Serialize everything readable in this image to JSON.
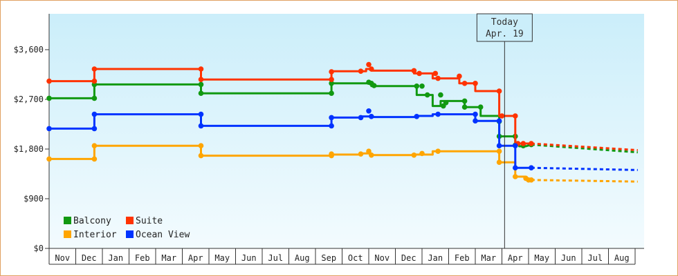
{
  "chart_data": {
    "type": "line",
    "title": "",
    "xlabel": "",
    "ylabel": "",
    "ylim": [
      0,
      4250
    ],
    "y_ticks": [
      0,
      900,
      1800,
      2700,
      3600
    ],
    "y_tick_labels": [
      "$0",
      "$900",
      "$1,800",
      "$2,700",
      "$3,600"
    ],
    "x_months": [
      "Nov",
      "Dec",
      "Jan",
      "Feb",
      "Mar",
      "Apr",
      "May",
      "Jun",
      "Jul",
      "Aug",
      "Sep",
      "Oct",
      "Nov",
      "Dec",
      "Jan",
      "Feb",
      "Mar",
      "Apr",
      "May",
      "Jun",
      "Jul",
      "Aug"
    ],
    "x_range_month_index": [
      0,
      22.2
    ],
    "today": {
      "month_index": 17.1,
      "label_line1": "Today",
      "label_line2": "Apr. 19"
    },
    "legend": {
      "placement": "bottom-left"
    },
    "series": [
      {
        "name": "Balcony",
        "color": "#119911",
        "points": [
          [
            0,
            2720
          ],
          [
            1.7,
            2720
          ],
          [
            1.7,
            2970
          ],
          [
            5.7,
            2970
          ],
          [
            5.7,
            2810
          ],
          [
            10.6,
            2810
          ],
          [
            10.6,
            2990
          ],
          [
            12.1,
            2990
          ],
          [
            12.1,
            2940
          ],
          [
            13.8,
            2940
          ],
          [
            13.8,
            2780
          ],
          [
            14.4,
            2780
          ],
          [
            14.4,
            2580
          ],
          [
            14.7,
            2580
          ],
          [
            14.7,
            2670
          ],
          [
            15.6,
            2670
          ],
          [
            15.6,
            2560
          ],
          [
            16.2,
            2560
          ],
          [
            16.2,
            2400
          ],
          [
            16.9,
            2400
          ],
          [
            16.9,
            2030
          ],
          [
            17.5,
            2030
          ],
          [
            17.5,
            1870
          ],
          [
            17.65,
            1870
          ],
          [
            17.65,
            1850
          ],
          [
            17.9,
            1850
          ],
          [
            18.1,
            1880
          ]
        ],
        "markers": [
          [
            0,
            2720
          ],
          [
            1.7,
            2720
          ],
          [
            1.7,
            2970
          ],
          [
            5.7,
            2970
          ],
          [
            5.7,
            2810
          ],
          [
            10.6,
            2810
          ],
          [
            10.6,
            2990
          ],
          [
            12,
            3010
          ],
          [
            12.1,
            2990
          ],
          [
            12.2,
            2950
          ],
          [
            13.8,
            2940
          ],
          [
            14,
            2940
          ],
          [
            14.2,
            2780
          ],
          [
            14.7,
            2780
          ],
          [
            14.8,
            2580
          ],
          [
            14.9,
            2640
          ],
          [
            15.6,
            2670
          ],
          [
            15.6,
            2560
          ],
          [
            16.2,
            2560
          ],
          [
            16.9,
            2300
          ],
          [
            16.9,
            2030
          ],
          [
            17.5,
            2030
          ],
          [
            17.5,
            1870
          ],
          [
            17.8,
            1860
          ],
          [
            18.1,
            1880
          ]
        ],
        "forecast": [
          [
            18.1,
            1880
          ],
          [
            22.1,
            1740
          ]
        ]
      },
      {
        "name": "Suite",
        "color": "#ff3300",
        "points": [
          [
            0,
            3030
          ],
          [
            1.7,
            3030
          ],
          [
            1.7,
            3250
          ],
          [
            5.7,
            3250
          ],
          [
            5.7,
            3060
          ],
          [
            10.6,
            3060
          ],
          [
            10.6,
            3210
          ],
          [
            11.9,
            3210
          ],
          [
            11.9,
            3250
          ],
          [
            12.1,
            3250
          ],
          [
            12.1,
            3220
          ],
          [
            13.7,
            3220
          ],
          [
            13.7,
            3170
          ],
          [
            14.4,
            3170
          ],
          [
            14.4,
            3080
          ],
          [
            15.4,
            3080
          ],
          [
            15.4,
            2990
          ],
          [
            16,
            2990
          ],
          [
            16,
            2850
          ],
          [
            16.9,
            2850
          ],
          [
            16.9,
            2400
          ],
          [
            17.5,
            2400
          ],
          [
            17.5,
            1900
          ],
          [
            18.1,
            1900
          ]
        ],
        "markers": [
          [
            0,
            3030
          ],
          [
            1.7,
            3030
          ],
          [
            1.7,
            3250
          ],
          [
            5.7,
            3250
          ],
          [
            5.7,
            3060
          ],
          [
            10.6,
            3060
          ],
          [
            10.6,
            3200
          ],
          [
            11.7,
            3210
          ],
          [
            12,
            3330
          ],
          [
            12.1,
            3250
          ],
          [
            13.7,
            3220
          ],
          [
            13.9,
            3170
          ],
          [
            14.5,
            3170
          ],
          [
            14.6,
            3080
          ],
          [
            15.4,
            3120
          ],
          [
            15.6,
            2990
          ],
          [
            16,
            2990
          ],
          [
            16.9,
            2850
          ],
          [
            17,
            2400
          ],
          [
            17.5,
            2400
          ],
          [
            17.6,
            1900
          ],
          [
            17.8,
            1900
          ],
          [
            18.1,
            1900
          ]
        ],
        "forecast": [
          [
            18.1,
            1900
          ],
          [
            22.1,
            1780
          ]
        ]
      },
      {
        "name": "Interior",
        "color": "#ffa500",
        "points": [
          [
            0,
            1620
          ],
          [
            1.7,
            1620
          ],
          [
            1.7,
            1860
          ],
          [
            5.7,
            1860
          ],
          [
            5.7,
            1680
          ],
          [
            10.6,
            1680
          ],
          [
            10.6,
            1700
          ],
          [
            11.7,
            1700
          ],
          [
            11.7,
            1720
          ],
          [
            12.1,
            1720
          ],
          [
            12.1,
            1690
          ],
          [
            13.7,
            1690
          ],
          [
            13.7,
            1700
          ],
          [
            14.4,
            1700
          ],
          [
            14.4,
            1760
          ],
          [
            16.9,
            1760
          ],
          [
            16.9,
            1560
          ],
          [
            17.5,
            1560
          ],
          [
            17.5,
            1300
          ],
          [
            17.9,
            1300
          ],
          [
            17.9,
            1240
          ],
          [
            18.1,
            1240
          ]
        ],
        "markers": [
          [
            0,
            1620
          ],
          [
            1.7,
            1620
          ],
          [
            1.7,
            1860
          ],
          [
            5.7,
            1860
          ],
          [
            5.7,
            1680
          ],
          [
            10.6,
            1680
          ],
          [
            10.6,
            1710
          ],
          [
            11.7,
            1710
          ],
          [
            12,
            1760
          ],
          [
            12.1,
            1690
          ],
          [
            13.7,
            1690
          ],
          [
            14,
            1720
          ],
          [
            14.6,
            1760
          ],
          [
            16.9,
            1760
          ],
          [
            16.9,
            1560
          ],
          [
            17.5,
            1300
          ],
          [
            17.9,
            1270
          ],
          [
            18,
            1240
          ],
          [
            18.1,
            1240
          ]
        ],
        "forecast": [
          [
            18.1,
            1240
          ],
          [
            22.1,
            1210
          ]
        ]
      },
      {
        "name": "Ocean View",
        "color": "#0033ff",
        "points": [
          [
            0,
            2170
          ],
          [
            1.7,
            2170
          ],
          [
            1.7,
            2430
          ],
          [
            5.7,
            2430
          ],
          [
            5.7,
            2220
          ],
          [
            10.6,
            2220
          ],
          [
            10.6,
            2370
          ],
          [
            11.7,
            2370
          ],
          [
            11.7,
            2390
          ],
          [
            12.1,
            2390
          ],
          [
            12.1,
            2380
          ],
          [
            13.8,
            2380
          ],
          [
            13.8,
            2400
          ],
          [
            14.4,
            2400
          ],
          [
            14.4,
            2430
          ],
          [
            16,
            2430
          ],
          [
            16,
            2310
          ],
          [
            16.9,
            2310
          ],
          [
            16.9,
            1860
          ],
          [
            17.5,
            1860
          ],
          [
            17.5,
            1460
          ],
          [
            18.1,
            1460
          ]
        ],
        "markers": [
          [
            0,
            2170
          ],
          [
            1.7,
            2170
          ],
          [
            1.7,
            2430
          ],
          [
            5.7,
            2430
          ],
          [
            5.7,
            2220
          ],
          [
            10.6,
            2220
          ],
          [
            10.6,
            2370
          ],
          [
            11.7,
            2370
          ],
          [
            12,
            2490
          ],
          [
            12.1,
            2390
          ],
          [
            13.8,
            2390
          ],
          [
            14.6,
            2430
          ],
          [
            16,
            2430
          ],
          [
            16,
            2310
          ],
          [
            16.9,
            2310
          ],
          [
            16.9,
            1860
          ],
          [
            17.5,
            1860
          ],
          [
            17.5,
            1460
          ],
          [
            18.1,
            1460
          ]
        ],
        "forecast": [
          [
            18.1,
            1460
          ],
          [
            22.1,
            1420
          ]
        ]
      }
    ]
  }
}
